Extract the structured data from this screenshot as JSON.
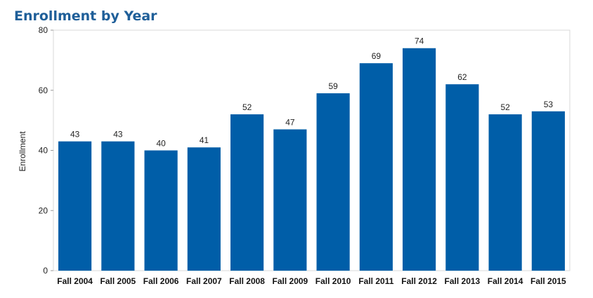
{
  "chart_data": {
    "type": "bar",
    "title": "Enrollment by Year",
    "xlabel": "",
    "ylabel": "Enrollment",
    "ylim": [
      0,
      80
    ],
    "yticks": [
      0,
      20,
      40,
      60,
      80
    ],
    "grid": false,
    "bar_color": "#005ea8",
    "categories": [
      "Fall 2004",
      "Fall 2005",
      "Fall 2006",
      "Fall 2007",
      "Fall 2008",
      "Fall 2009",
      "Fall 2010",
      "Fall 2011",
      "Fall 2012",
      "Fall 2013",
      "Fall 2014",
      "Fall 2015"
    ],
    "values": [
      43,
      43,
      40,
      41,
      52,
      47,
      59,
      69,
      74,
      62,
      52,
      53
    ]
  }
}
